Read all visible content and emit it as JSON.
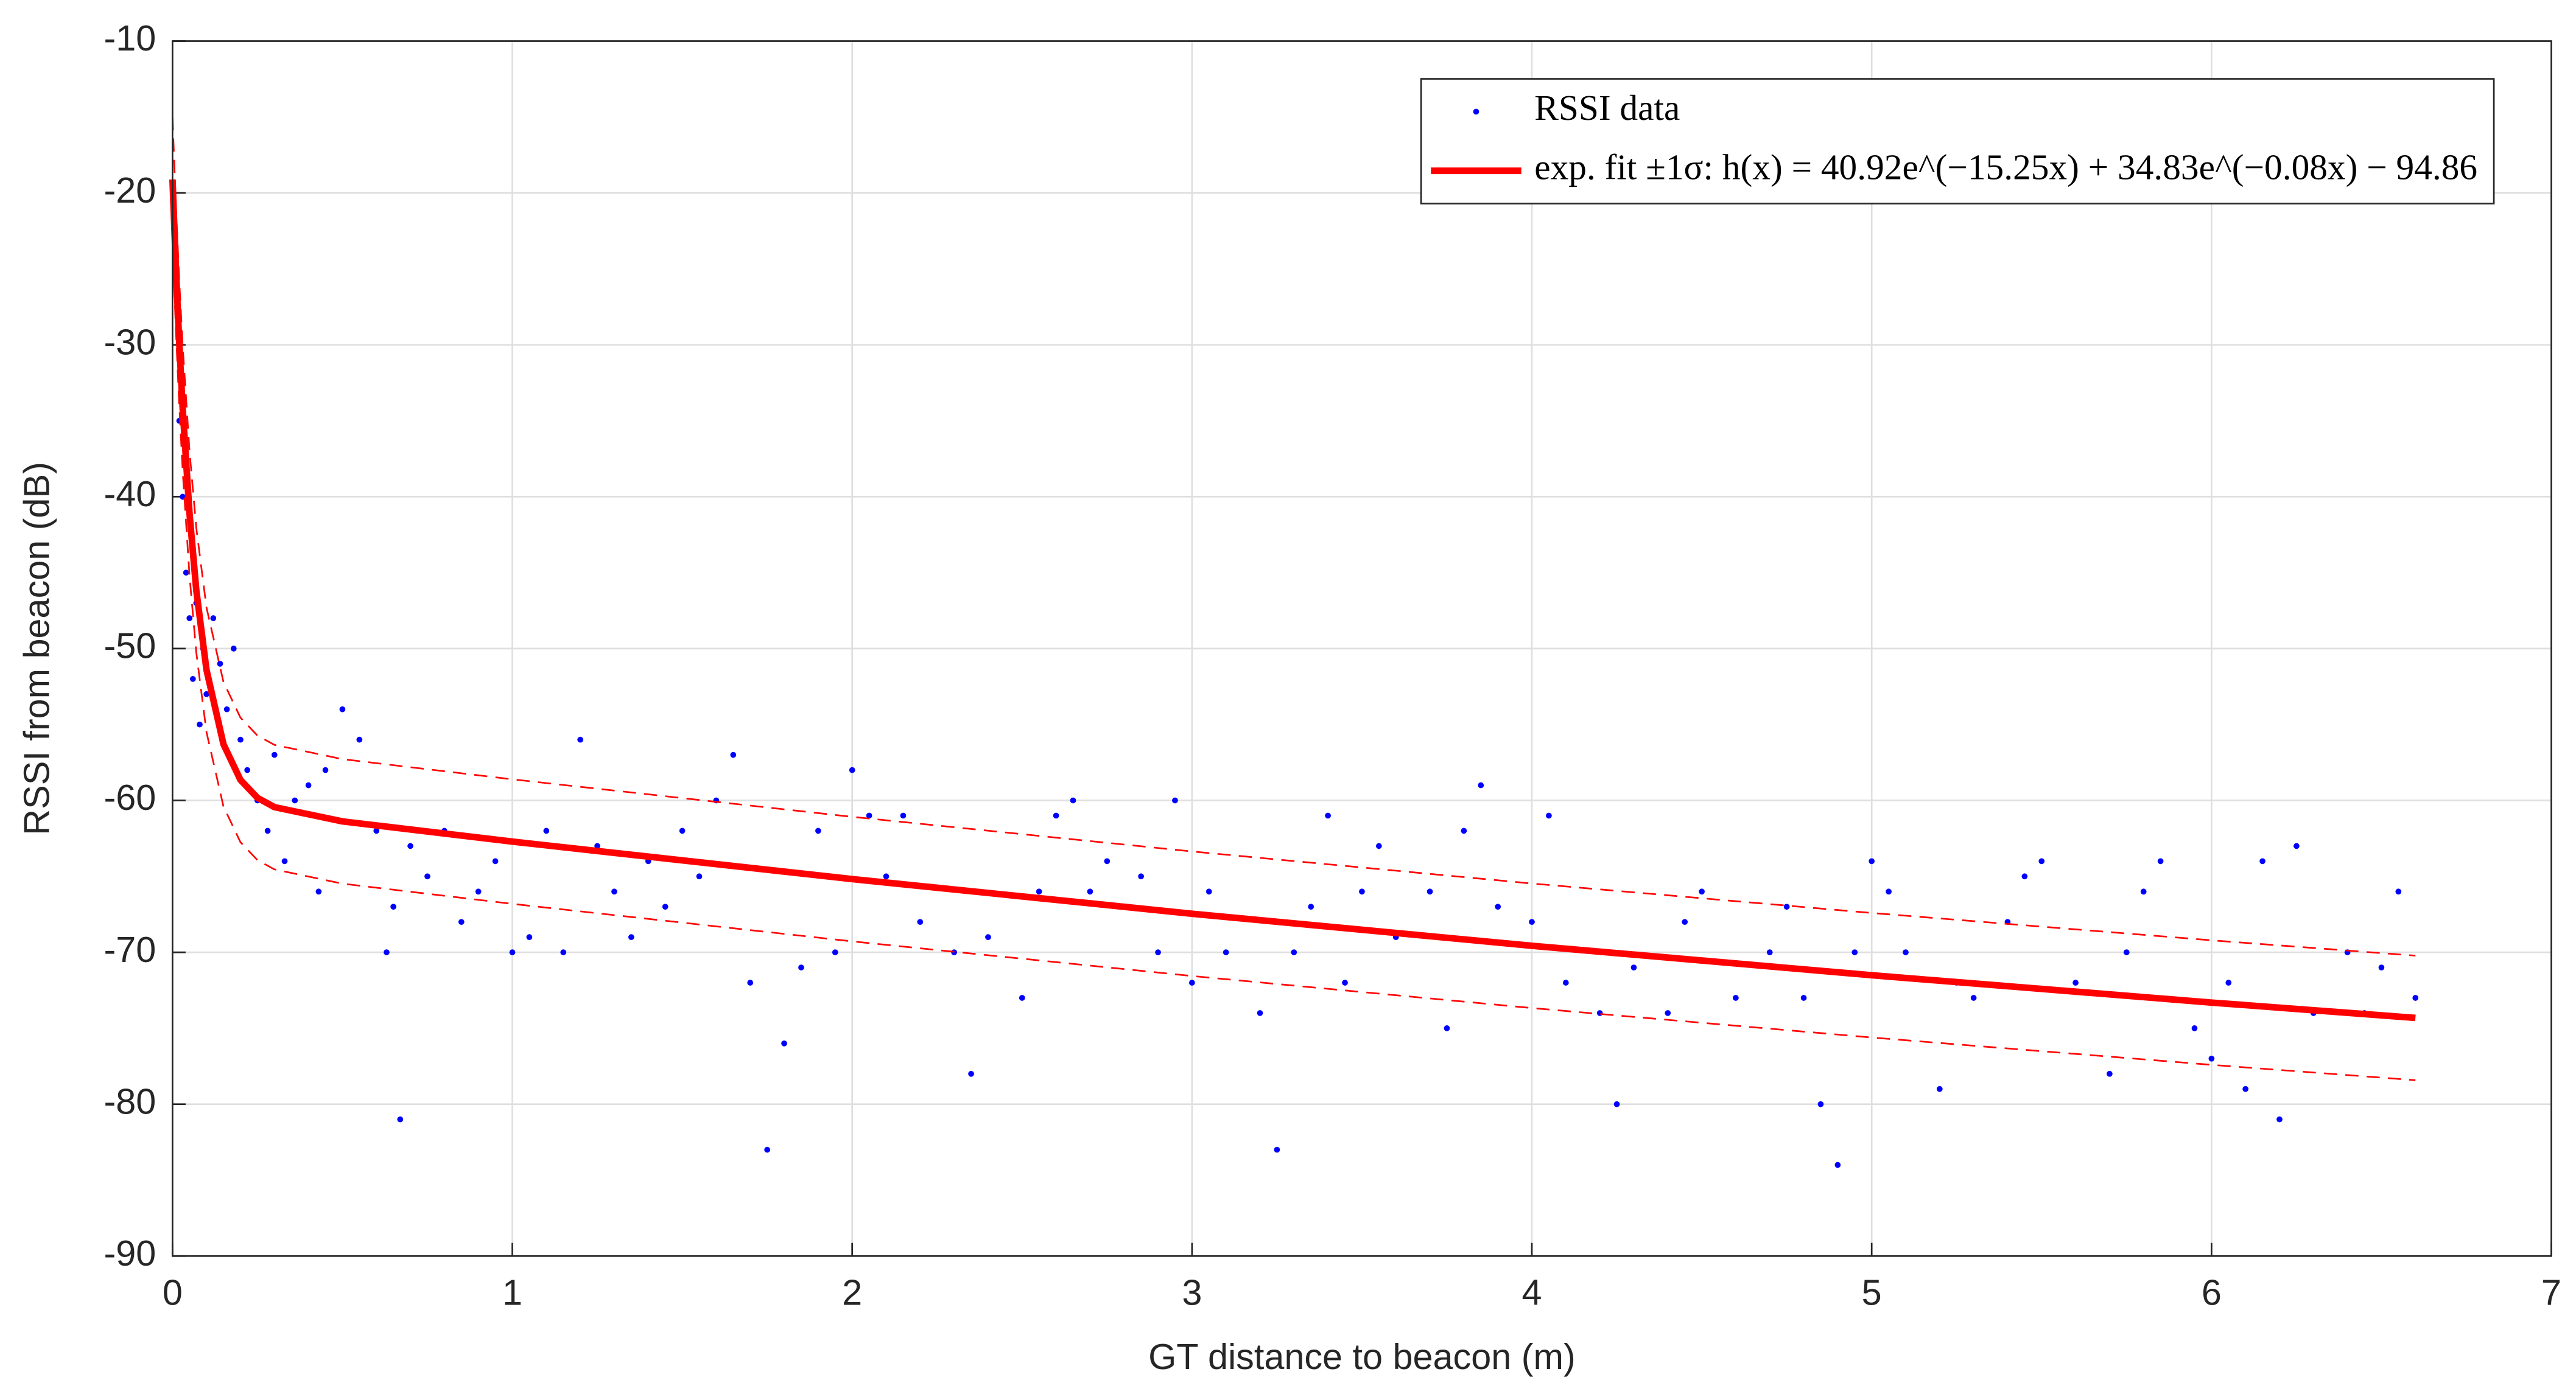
{
  "chart_data": {
    "type": "scatter",
    "xlabel": "GT distance to beacon (m)",
    "ylabel": "RSSI from beacon (dB)",
    "xlim": [
      0,
      7
    ],
    "xticks": [
      0,
      1,
      2,
      3,
      4,
      5,
      6,
      7
    ],
    "ylim": [
      -90,
      -10
    ],
    "yticks": [
      -90,
      -80,
      -70,
      -60,
      -50,
      -40,
      -30,
      -20,
      -10
    ],
    "grid": true,
    "legend": "northeast",
    "series": [
      {
        "type": "scatter",
        "name": "RSSI data",
        "color": "#0000ff",
        "x": [
          0.01,
          0.02,
          0.03,
          0.04,
          0.05,
          0.06,
          0.07,
          0.08,
          0.09,
          0.1,
          0.12,
          0.14,
          0.16,
          0.18,
          0.2,
          0.22,
          0.25,
          0.28,
          0.3,
          0.33,
          0.36,
          0.4,
          0.43,
          0.45,
          0.5,
          0.55,
          0.6,
          0.63,
          0.65,
          0.67,
          0.7,
          0.75,
          0.8,
          0.85,
          0.9,
          0.95,
          1.0,
          1.05,
          1.1,
          1.15,
          1.2,
          1.25,
          1.3,
          1.35,
          1.4,
          1.45,
          1.5,
          1.55,
          1.6,
          1.65,
          1.7,
          1.75,
          1.8,
          1.85,
          1.9,
          1.95,
          2.0,
          2.05,
          2.1,
          2.15,
          2.2,
          2.3,
          2.35,
          2.4,
          2.5,
          2.55,
          2.6,
          2.65,
          2.7,
          2.75,
          2.85,
          2.9,
          2.95,
          3.0,
          3.05,
          3.1,
          3.2,
          3.25,
          3.3,
          3.35,
          3.4,
          3.45,
          3.5,
          3.55,
          3.6,
          3.7,
          3.75,
          3.8,
          3.85,
          3.9,
          4.0,
          4.05,
          4.1,
          4.2,
          4.25,
          4.3,
          4.4,
          4.45,
          4.5,
          4.6,
          4.7,
          4.75,
          4.8,
          4.85,
          4.9,
          4.95,
          5.0,
          5.05,
          5.1,
          5.2,
          5.25,
          5.3,
          5.4,
          5.45,
          5.5,
          5.6,
          5.7,
          5.75,
          5.8,
          5.85,
          5.95,
          6.0,
          6.05,
          6.1,
          6.15,
          6.2,
          6.25,
          6.3,
          6.4,
          6.45,
          6.5,
          6.55,
          6.6
        ],
        "values": [
          -25,
          -35,
          -40,
          -45,
          -48,
          -52,
          -47,
          -55,
          -50,
          -53,
          -48,
          -51,
          -54,
          -50,
          -56,
          -58,
          -60,
          -62,
          -57,
          -64,
          -60,
          -59,
          -66,
          -58,
          -54,
          -56,
          -62,
          -70,
          -67,
          -81,
          -63,
          -65,
          -62,
          -68,
          -66,
          -64,
          -70,
          -69,
          -62,
          -70,
          -56,
          -63,
          -66,
          -69,
          -64,
          -67,
          -62,
          -65,
          -60,
          -57,
          -72,
          -83,
          -76,
          -71,
          -62,
          -70,
          -58,
          -61,
          -65,
          -61,
          -68,
          -70,
          -78,
          -69,
          -73,
          -66,
          -61,
          -60,
          -66,
          -64,
          -65,
          -70,
          -60,
          -72,
          -66,
          -70,
          -74,
          -83,
          -70,
          -67,
          -61,
          -72,
          -66,
          -63,
          -69,
          -66,
          -75,
          -62,
          -59,
          -67,
          -68,
          -61,
          -72,
          -74,
          -80,
          -71,
          -74,
          -68,
          -66,
          -73,
          -70,
          -67,
          -73,
          -80,
          -84,
          -70,
          -64,
          -66,
          -70,
          -79,
          -72,
          -73,
          -68,
          -65,
          -64,
          -72,
          -78,
          -70,
          -66,
          -64,
          -75,
          -77,
          -72,
          -79,
          -64,
          -81,
          -63,
          -74,
          -70,
          -74,
          -71,
          -66,
          -73
        ]
      },
      {
        "type": "line",
        "style": "solid",
        "name": "exp. fit ±1σ: h(x) = 40.92e^(−15.25x) + 34.83e^(−0.08x) − 94.86",
        "color": "#ff0000",
        "x": [
          0,
          0.01,
          0.02,
          0.03,
          0.05,
          0.07,
          0.1,
          0.15,
          0.2,
          0.25,
          0.3,
          0.5,
          1,
          2,
          3,
          4,
          5,
          6,
          6.6
        ],
        "values": [
          -19.11,
          -24.93,
          -29.93,
          -34.21,
          -41.08,
          -46.16,
          -51.4,
          -56.3,
          -58.65,
          -59.83,
          -60.44,
          -61.38,
          -62.71,
          -65.18,
          -67.46,
          -69.57,
          -71.51,
          -73.31,
          -74.32
        ]
      },
      {
        "type": "line",
        "style": "dashed",
        "color": "#ff0000",
        "x": [
          0,
          0.01,
          0.02,
          0.03,
          0.05,
          0.07,
          0.1,
          0.15,
          0.2,
          0.25,
          0.3,
          0.5,
          1,
          2,
          3,
          4,
          5,
          6,
          6.6
        ],
        "values": [
          -15.01,
          -20.83,
          -25.83,
          -30.11,
          -36.98,
          -42.06,
          -47.3,
          -52.2,
          -54.55,
          -55.73,
          -56.34,
          -57.28,
          -58.61,
          -61.08,
          -63.36,
          -65.47,
          -67.41,
          -69.21,
          -70.22
        ]
      },
      {
        "type": "line",
        "style": "dashed",
        "color": "#ff0000",
        "x": [
          0,
          0.01,
          0.02,
          0.03,
          0.05,
          0.07,
          0.1,
          0.15,
          0.2,
          0.25,
          0.3,
          0.5,
          1,
          2,
          3,
          4,
          5,
          6,
          6.6
        ],
        "values": [
          -23.21,
          -29.03,
          -34.03,
          -38.31,
          -45.18,
          -50.26,
          -55.5,
          -60.4,
          -62.75,
          -63.93,
          -64.54,
          -65.48,
          -66.81,
          -69.28,
          -71.56,
          -73.67,
          -75.61,
          -77.41,
          -78.42
        ]
      }
    ]
  }
}
